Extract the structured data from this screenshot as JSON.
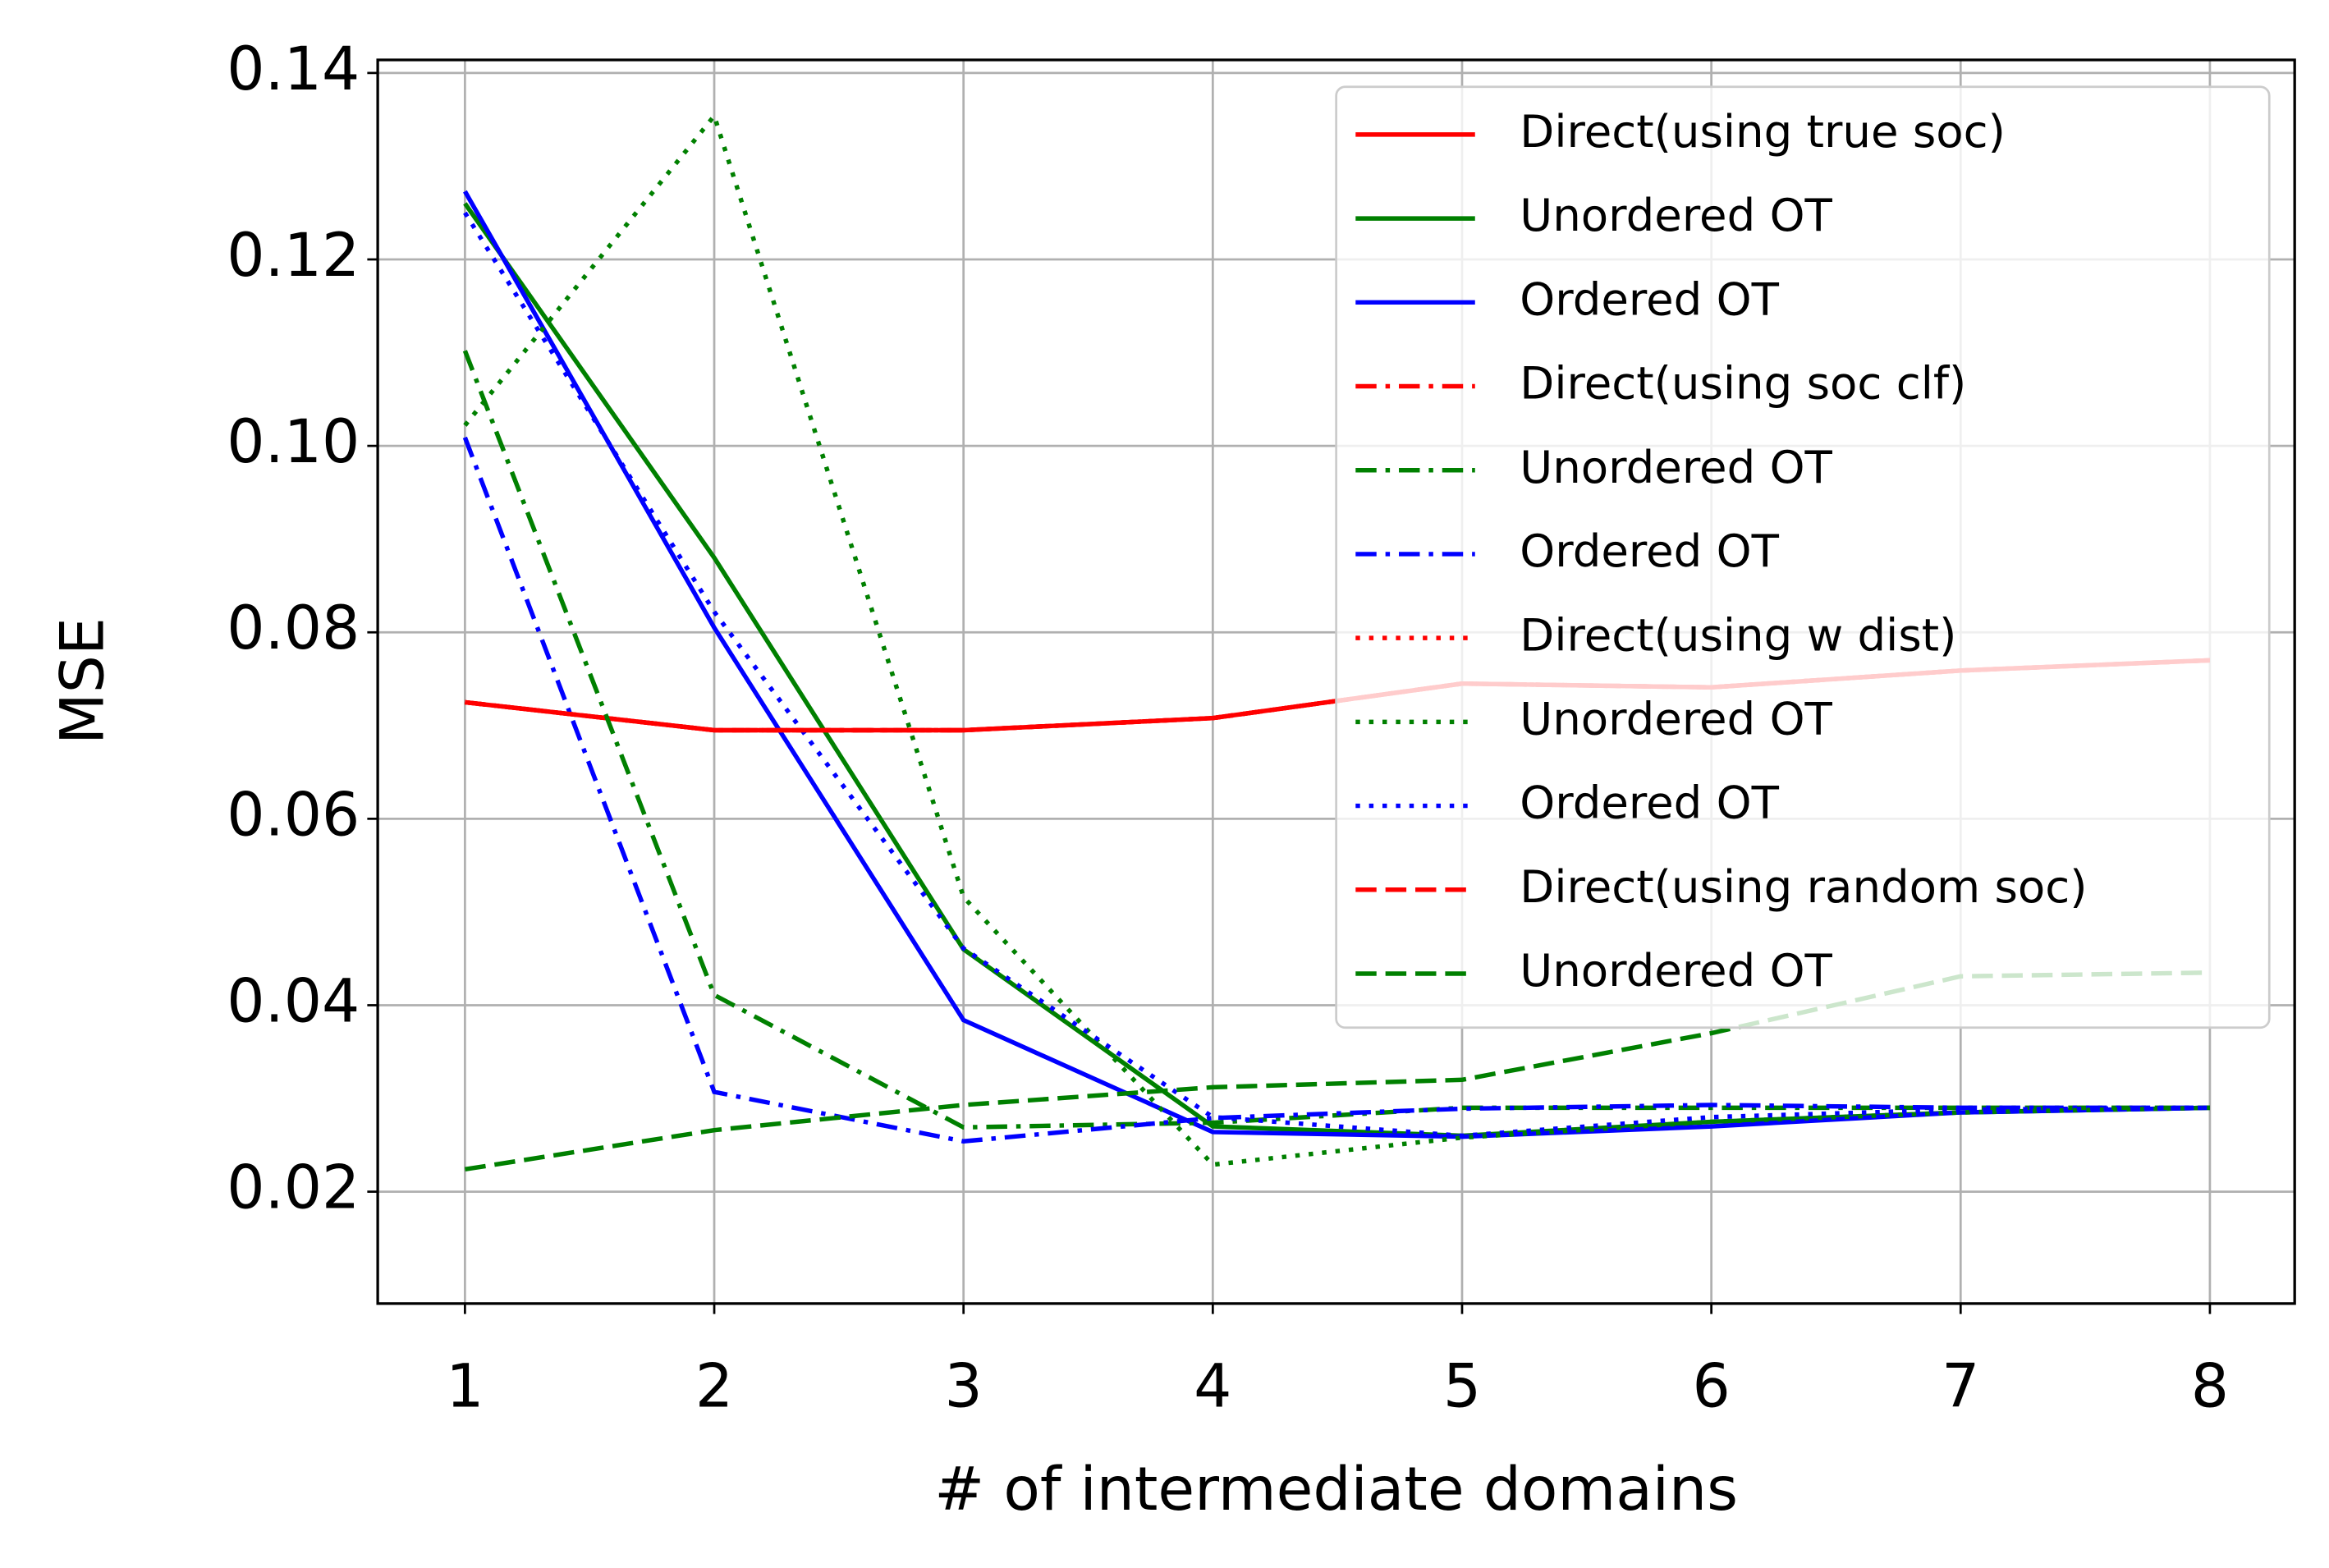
{
  "chart_data": {
    "type": "line",
    "xlabel": "# of intermediate domains",
    "ylabel": "MSE",
    "x": [
      1,
      2,
      3,
      4,
      5,
      6,
      7,
      8
    ],
    "xlim": [
      0.65,
      8.34
    ],
    "ylim": [
      0.008,
      0.1414
    ],
    "xticks": [
      1,
      2,
      3,
      4,
      5,
      6,
      7,
      8
    ],
    "yticks": [
      0.02,
      0.04,
      0.06,
      0.08,
      {
        "value": 0.1,
        "label": "0.10"
      },
      0.12,
      0.14
    ],
    "grid": true,
    "legend": "upper right",
    "series": [
      {
        "name": "Direct(using true soc)",
        "color": "#ff0000",
        "linestyle": "solid",
        "values": [
          0.0725,
          0.0695,
          0.0695,
          0.0708,
          0.0745,
          0.0741,
          0.0759,
          0.077
        ]
      },
      {
        "name": "Unordered OT",
        "color": "#008000",
        "linestyle": "solid",
        "values": [
          0.126,
          0.088,
          0.046,
          0.027,
          0.026,
          0.0275,
          0.0285,
          0.029
        ]
      },
      {
        "name": "Ordered OT",
        "color": "#0000ff",
        "linestyle": "solid",
        "values": [
          0.1273,
          0.0805,
          0.0384,
          0.0264,
          0.0259,
          0.027,
          0.0285,
          0.029
        ]
      },
      {
        "name": "Direct(using soc clf)",
        "color": "#ff0000",
        "linestyle": "dashdot",
        "values": [
          0.0725,
          0.0695,
          0.0695,
          0.0708,
          0.0745,
          0.0741,
          0.0759,
          0.077
        ]
      },
      {
        "name": "Unordered OT",
        "color": "#008000",
        "linestyle": "dashdot",
        "values": [
          0.1102,
          0.0411,
          0.0269,
          0.0274,
          0.029,
          0.029,
          0.029,
          0.029
        ]
      },
      {
        "name": "Ordered OT",
        "color": "#0000ff",
        "linestyle": "dashdot",
        "values": [
          0.1009,
          0.0307,
          0.0254,
          0.0279,
          0.0289,
          0.0293,
          0.029,
          0.029
        ]
      },
      {
        "name": "Direct(using w dist)",
        "color": "#ff0000",
        "linestyle": "dotted",
        "values": [
          0.0725,
          0.0695,
          0.0695,
          0.0708,
          0.0745,
          0.0741,
          0.0759,
          0.077
        ]
      },
      {
        "name": "Unordered OT",
        "color": "#008000",
        "linestyle": "dotted",
        "values": [
          0.1022,
          0.1354,
          0.0516,
          0.0229,
          0.0258,
          0.0275,
          0.0285,
          0.029
        ]
      },
      {
        "name": "Ordered OT",
        "color": "#0000ff",
        "linestyle": "dotted",
        "values": [
          0.125,
          0.0822,
          0.0461,
          0.028,
          0.026,
          0.028,
          0.0288,
          0.029
        ]
      },
      {
        "name": "Direct(using random soc)",
        "color": "#ff0000",
        "linestyle": "dashed",
        "values": [
          0.0725,
          0.0695,
          0.0695,
          0.0708,
          0.0745,
          0.0741,
          0.0759,
          0.077
        ]
      },
      {
        "name": "Unordered OT",
        "color": "#008000",
        "linestyle": "dashed",
        "values": [
          0.0224,
          0.0266,
          0.0293,
          0.0312,
          0.032,
          0.037,
          0.0431,
          0.0435
        ]
      }
    ]
  }
}
